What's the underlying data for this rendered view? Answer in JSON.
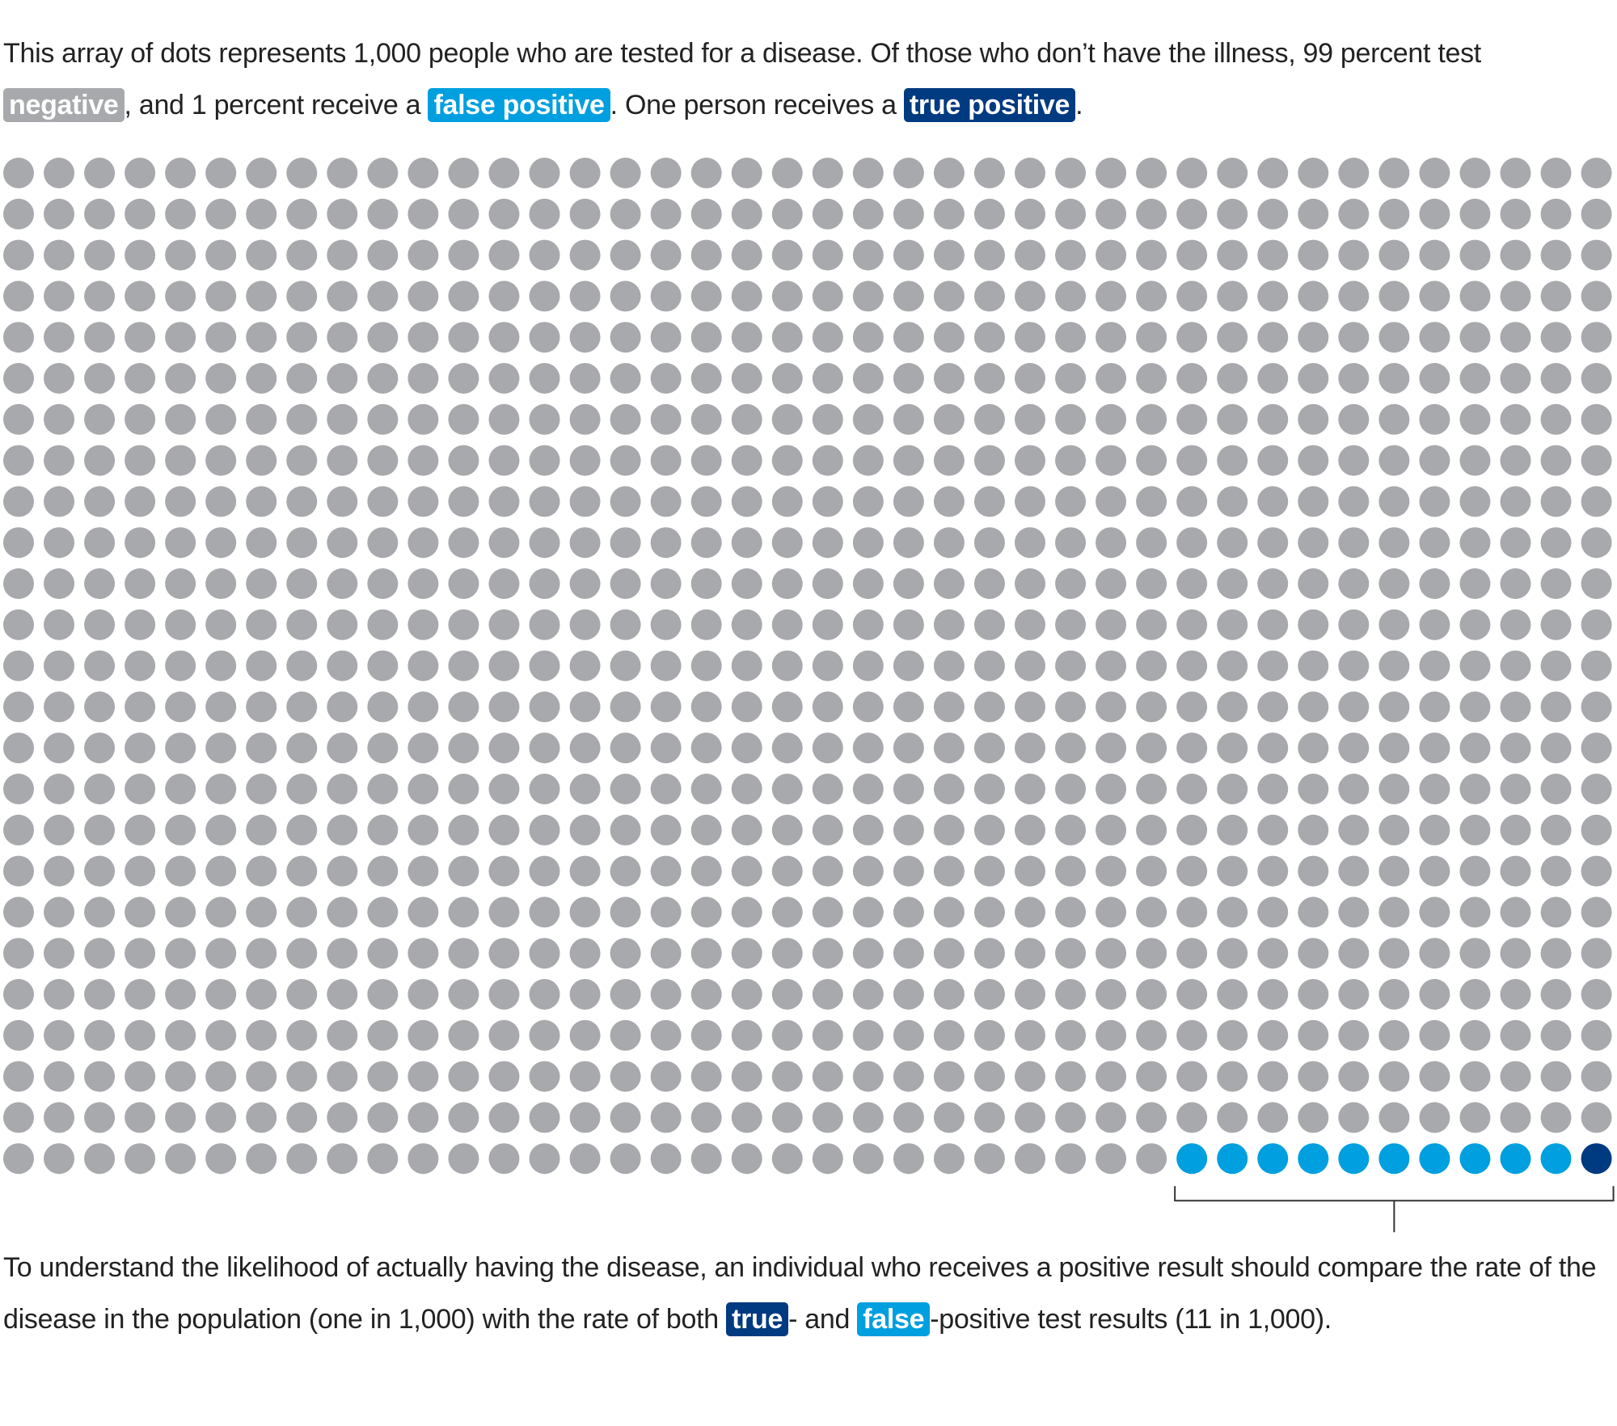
{
  "chart_data": {
    "type": "waffle",
    "intro": [
      "This array of dots represents 1,000 people who are tested for a disease. Of those who don’t have the illness, 99 percent test ",
      ", and 1 percent receive a ",
      ". One person receives a ",
      "."
    ],
    "series": [
      {
        "name": "negative",
        "color": "#a7a9ac",
        "values": [
          989
        ]
      },
      {
        "name": "false positive",
        "color": "#009fdf",
        "values": [
          10
        ]
      },
      {
        "name": "true positive",
        "color": "#003a80",
        "values": [
          1
        ]
      }
    ],
    "columns": 40,
    "outro": [
      "To understand the likelihood of actually having the disease, an individual who receives a positive result should compare the rate of the disease in the population (one in 1,000) with the rate of both ",
      "true",
      "- and ",
      "false",
      "-positive test results (11 in 1,000)."
    ]
  }
}
